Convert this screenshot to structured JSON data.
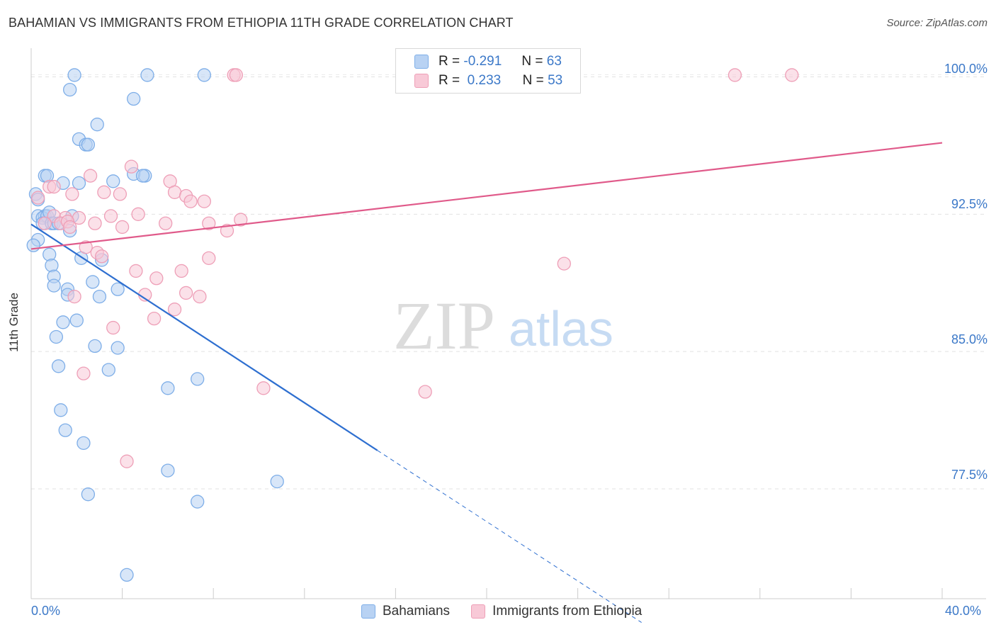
{
  "title": "BAHAMIAN VS IMMIGRANTS FROM ETHIOPIA 11TH GRADE CORRELATION CHART",
  "source": "Source: ZipAtlas.com",
  "watermark": {
    "zip": "ZIP",
    "atlas": "atlas"
  },
  "legend_stats": [
    {
      "r_label": "R =",
      "r_value": "-0.291",
      "n_label": "N =",
      "n_value": "63"
    },
    {
      "r_label": "R =",
      "r_value": "0.233",
      "n_label": "N =",
      "n_value": "53"
    }
  ],
  "chart_data": {
    "type": "scatter",
    "title": "BAHAMIAN VS IMMIGRANTS FROM ETHIOPIA 11TH GRADE CORRELATION CHART",
    "xlabel": "",
    "ylabel": "11th Grade",
    "xlim": [
      0,
      40
    ],
    "ylim": [
      71.5,
      101.8
    ],
    "x_tick_labels": [
      "0.0%",
      "40.0%"
    ],
    "y_ticks": [
      77.5,
      85.0,
      92.5,
      100.0
    ],
    "y_tick_labels": [
      "77.5%",
      "85.0%",
      "92.5%",
      "100.0%"
    ],
    "series": [
      {
        "name": "Bahamians",
        "color": "#7eaee8",
        "fill": "#b8d2f3",
        "line_color": "#2e6fd0",
        "trend": {
          "x0": 0,
          "y0": 91.95,
          "x1": 15.2,
          "y1": 79.6,
          "dash_to_x": 26.8,
          "dash_to_y": 70.2
        },
        "points": [
          [
            1.9,
            100.1
          ],
          [
            5.1,
            100.1
          ],
          [
            7.6,
            100.1
          ],
          [
            1.7,
            99.3
          ],
          [
            4.5,
            98.8
          ],
          [
            2.9,
            97.4
          ],
          [
            2.1,
            96.6
          ],
          [
            2.4,
            96.3
          ],
          [
            2.5,
            96.3
          ],
          [
            0.6,
            94.6
          ],
          [
            0.7,
            94.6
          ],
          [
            4.5,
            94.7
          ],
          [
            5.0,
            94.6
          ],
          [
            4.9,
            94.6
          ],
          [
            3.6,
            94.3
          ],
          [
            1.4,
            94.2
          ],
          [
            2.1,
            94.2
          ],
          [
            0.2,
            93.6
          ],
          [
            0.3,
            93.3
          ],
          [
            0.3,
            92.4
          ],
          [
            0.6,
            92.4
          ],
          [
            0.5,
            92.3
          ],
          [
            0.7,
            92.4
          ],
          [
            0.8,
            92.6
          ],
          [
            1.8,
            92.4
          ],
          [
            0.5,
            92.0
          ],
          [
            0.9,
            92.0
          ],
          [
            1.0,
            92.0
          ],
          [
            1.2,
            92.0
          ],
          [
            1.7,
            91.6
          ],
          [
            0.3,
            91.1
          ],
          [
            0.1,
            90.8
          ],
          [
            0.8,
            90.3
          ],
          [
            2.2,
            90.1
          ],
          [
            3.1,
            90.0
          ],
          [
            0.9,
            89.7
          ],
          [
            1.0,
            89.1
          ],
          [
            2.7,
            88.8
          ],
          [
            1.0,
            88.6
          ],
          [
            1.6,
            88.4
          ],
          [
            3.8,
            88.4
          ],
          [
            1.6,
            88.1
          ],
          [
            3.0,
            88.0
          ],
          [
            2.0,
            86.7
          ],
          [
            1.4,
            86.6
          ],
          [
            1.1,
            85.8
          ],
          [
            2.8,
            85.3
          ],
          [
            3.8,
            85.2
          ],
          [
            1.2,
            84.2
          ],
          [
            3.4,
            84.0
          ],
          [
            6.0,
            83.0
          ],
          [
            7.3,
            83.5
          ],
          [
            1.3,
            81.8
          ],
          [
            1.5,
            80.7
          ],
          [
            2.3,
            80.0
          ],
          [
            6.0,
            78.5
          ],
          [
            10.8,
            77.9
          ],
          [
            2.5,
            77.2
          ],
          [
            7.3,
            76.8
          ],
          [
            4.2,
            72.8
          ]
        ]
      },
      {
        "name": "Immigrants from Ethiopia",
        "color": "#ee9fb7",
        "fill": "#f8c9d7",
        "line_color": "#e05a8a",
        "trend": {
          "x0": 0,
          "y0": 90.6,
          "x1": 40,
          "y1": 96.4
        },
        "points": [
          [
            8.9,
            100.1
          ],
          [
            9.0,
            100.1
          ],
          [
            30.9,
            100.1
          ],
          [
            33.4,
            100.1
          ],
          [
            4.4,
            95.1
          ],
          [
            2.6,
            94.6
          ],
          [
            6.1,
            94.3
          ],
          [
            0.8,
            94.0
          ],
          [
            1.0,
            94.0
          ],
          [
            3.2,
            93.7
          ],
          [
            6.3,
            93.7
          ],
          [
            3.9,
            93.6
          ],
          [
            1.8,
            93.6
          ],
          [
            6.8,
            93.5
          ],
          [
            7.0,
            93.2
          ],
          [
            7.6,
            93.2
          ],
          [
            0.3,
            93.4
          ],
          [
            3.5,
            92.4
          ],
          [
            4.7,
            92.5
          ],
          [
            1.5,
            92.3
          ],
          [
            2.1,
            92.3
          ],
          [
            1.0,
            92.4
          ],
          [
            9.2,
            92.2
          ],
          [
            0.6,
            92.0
          ],
          [
            1.3,
            92.0
          ],
          [
            1.6,
            92.1
          ],
          [
            2.8,
            92.0
          ],
          [
            5.9,
            92.0
          ],
          [
            7.8,
            92.0
          ],
          [
            1.7,
            91.8
          ],
          [
            4.0,
            91.8
          ],
          [
            8.6,
            91.6
          ],
          [
            2.4,
            90.7
          ],
          [
            2.9,
            90.4
          ],
          [
            3.1,
            90.2
          ],
          [
            7.8,
            90.1
          ],
          [
            23.4,
            89.8
          ],
          [
            4.6,
            89.4
          ],
          [
            6.6,
            89.4
          ],
          [
            5.5,
            89.0
          ],
          [
            5.0,
            88.1
          ],
          [
            6.8,
            88.2
          ],
          [
            7.4,
            88.0
          ],
          [
            1.9,
            88.0
          ],
          [
            6.3,
            87.3
          ],
          [
            5.4,
            86.8
          ],
          [
            3.6,
            86.3
          ],
          [
            2.3,
            83.8
          ],
          [
            10.2,
            83.0
          ],
          [
            17.3,
            82.8
          ],
          [
            4.2,
            79.0
          ]
        ]
      }
    ]
  }
}
